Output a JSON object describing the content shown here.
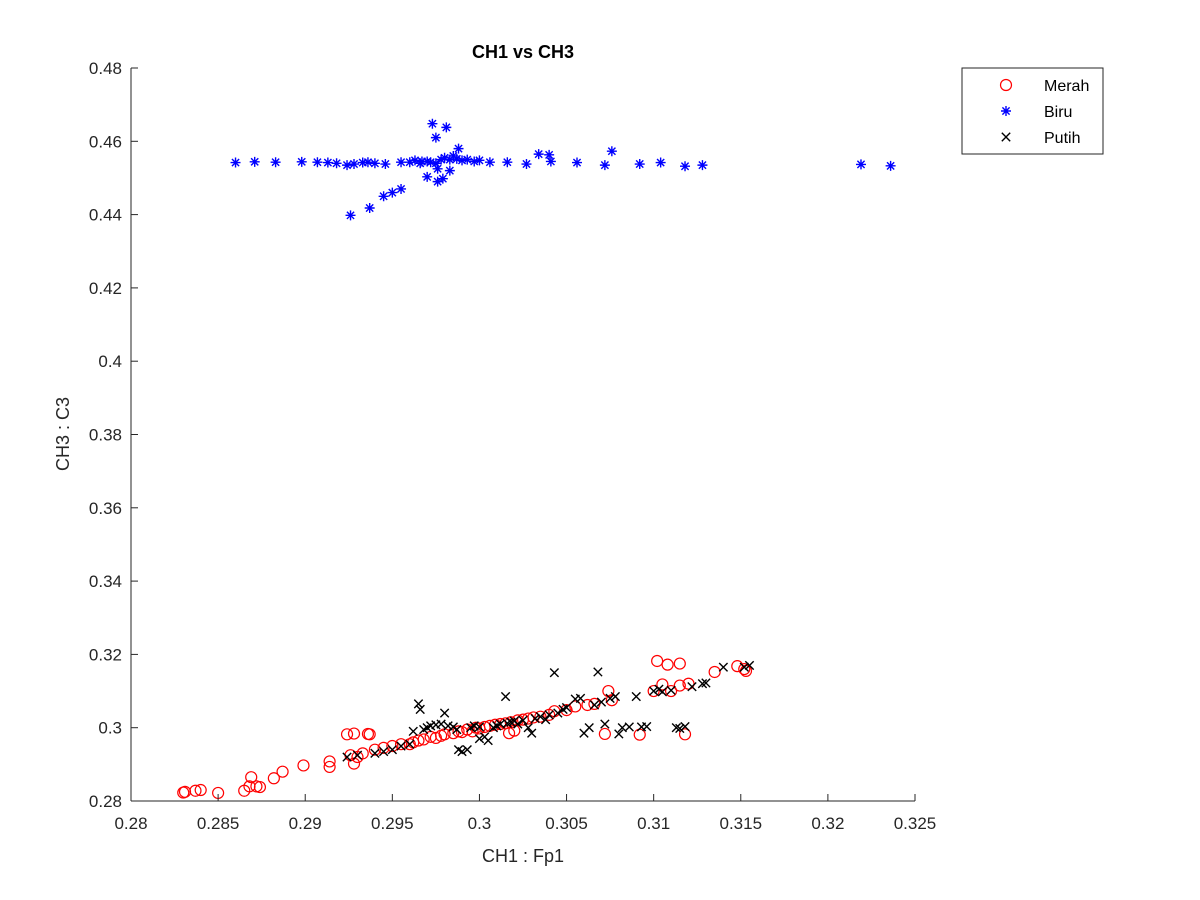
{
  "chart_data": {
    "type": "scatter",
    "title": "CH1 vs CH3",
    "xlabel": "CH1 : Fp1",
    "ylabel": "CH3 : C3",
    "xlim": [
      0.28,
      0.325
    ],
    "ylim": [
      0.28,
      0.48
    ],
    "xticks": [
      0.28,
      0.285,
      0.29,
      0.295,
      0.3,
      0.305,
      0.31,
      0.315,
      0.32,
      0.325
    ],
    "xtick_labels": [
      "0.28",
      "0.285",
      "0.29",
      "0.295",
      "0.3",
      "0.305",
      "0.31",
      "0.315",
      "0.32",
      "0.325"
    ],
    "yticks": [
      0.28,
      0.3,
      0.32,
      0.34,
      0.36,
      0.38,
      0.4,
      0.42,
      0.44,
      0.46,
      0.48
    ],
    "ytick_labels": [
      "0.28",
      "0.3",
      "0.32",
      "0.34",
      "0.36",
      "0.38",
      "0.4",
      "0.42",
      "0.44",
      "0.46",
      "0.48"
    ],
    "grid": false,
    "legend_position": "outside-top-right",
    "series": [
      {
        "name": "Merah",
        "marker": "circle",
        "color": "#ff0000",
        "points": [
          [
            0.283,
            0.2823
          ],
          [
            0.2831,
            0.2825
          ],
          [
            0.2837,
            0.2828
          ],
          [
            0.284,
            0.283
          ],
          [
            0.285,
            0.2822
          ],
          [
            0.2865,
            0.2828
          ],
          [
            0.2868,
            0.284
          ],
          [
            0.2869,
            0.2865
          ],
          [
            0.2872,
            0.284
          ],
          [
            0.2874,
            0.2838
          ],
          [
            0.2882,
            0.2862
          ],
          [
            0.2887,
            0.288
          ],
          [
            0.2899,
            0.2897
          ],
          [
            0.2914,
            0.2893
          ],
          [
            0.2914,
            0.2908
          ],
          [
            0.2924,
            0.2982
          ],
          [
            0.2926,
            0.2925
          ],
          [
            0.2928,
            0.2984
          ],
          [
            0.2928,
            0.2902
          ],
          [
            0.293,
            0.292
          ],
          [
            0.2933,
            0.293
          ],
          [
            0.2936,
            0.2983
          ],
          [
            0.2937,
            0.2982
          ],
          [
            0.294,
            0.294
          ],
          [
            0.2945,
            0.2945
          ],
          [
            0.295,
            0.295
          ],
          [
            0.2955,
            0.2955
          ],
          [
            0.296,
            0.2955
          ],
          [
            0.2962,
            0.296
          ],
          [
            0.2965,
            0.2965
          ],
          [
            0.2968,
            0.2968
          ],
          [
            0.2972,
            0.2975
          ],
          [
            0.2975,
            0.2972
          ],
          [
            0.2978,
            0.2978
          ],
          [
            0.298,
            0.2982
          ],
          [
            0.2985,
            0.2985
          ],
          [
            0.2988,
            0.299
          ],
          [
            0.299,
            0.2988
          ],
          [
            0.2993,
            0.2995
          ],
          [
            0.2996,
            0.299
          ],
          [
            0.2998,
            0.3
          ],
          [
            0.3,
            0.2998
          ],
          [
            0.3003,
            0.3002
          ],
          [
            0.3006,
            0.3005
          ],
          [
            0.3009,
            0.3008
          ],
          [
            0.3012,
            0.301
          ],
          [
            0.3015,
            0.3012
          ],
          [
            0.3018,
            0.3015
          ],
          [
            0.3017,
            0.2985
          ],
          [
            0.302,
            0.2992
          ],
          [
            0.3022,
            0.302
          ],
          [
            0.3025,
            0.3022
          ],
          [
            0.3028,
            0.3025
          ],
          [
            0.3031,
            0.3028
          ],
          [
            0.3035,
            0.303
          ],
          [
            0.304,
            0.3035
          ],
          [
            0.3043,
            0.3045
          ],
          [
            0.305,
            0.3048
          ],
          [
            0.3055,
            0.3058
          ],
          [
            0.3062,
            0.3062
          ],
          [
            0.3066,
            0.3065
          ],
          [
            0.3072,
            0.2983
          ],
          [
            0.3074,
            0.31
          ],
          [
            0.3076,
            0.3075
          ],
          [
            0.3092,
            0.2981
          ],
          [
            0.31,
            0.31
          ],
          [
            0.3102,
            0.3182
          ],
          [
            0.3105,
            0.3118
          ],
          [
            0.3108,
            0.3172
          ],
          [
            0.311,
            0.31
          ],
          [
            0.3115,
            0.3175
          ],
          [
            0.3115,
            0.3115
          ],
          [
            0.3118,
            0.2982
          ],
          [
            0.312,
            0.312
          ],
          [
            0.3135,
            0.3152
          ],
          [
            0.3148,
            0.3168
          ],
          [
            0.3152,
            0.316
          ],
          [
            0.3153,
            0.3155
          ]
        ]
      },
      {
        "name": "Biru",
        "marker": "asterisk",
        "color": "#0000ff",
        "points": [
          [
            0.286,
            0.4542
          ],
          [
            0.2871,
            0.4544
          ],
          [
            0.2883,
            0.4543
          ],
          [
            0.2898,
            0.4544
          ],
          [
            0.2907,
            0.4543
          ],
          [
            0.2913,
            0.4542
          ],
          [
            0.2918,
            0.454
          ],
          [
            0.2924,
            0.4535
          ],
          [
            0.2928,
            0.4538
          ],
          [
            0.2933,
            0.4542
          ],
          [
            0.2936,
            0.4543
          ],
          [
            0.294,
            0.454
          ],
          [
            0.2946,
            0.4538
          ],
          [
            0.2955,
            0.4543
          ],
          [
            0.296,
            0.4543
          ],
          [
            0.2966,
            0.454
          ],
          [
            0.297,
            0.4545
          ],
          [
            0.2972,
            0.4543
          ],
          [
            0.2975,
            0.454
          ],
          [
            0.2978,
            0.455
          ],
          [
            0.298,
            0.4555
          ],
          [
            0.2983,
            0.455
          ],
          [
            0.2985,
            0.456
          ],
          [
            0.2987,
            0.4552
          ],
          [
            0.299,
            0.4548
          ],
          [
            0.2993,
            0.455
          ],
          [
            0.2997,
            0.4545
          ],
          [
            0.3,
            0.4548
          ],
          [
            0.3006,
            0.4543
          ],
          [
            0.3016,
            0.4543
          ],
          [
            0.3027,
            0.4538
          ],
          [
            0.3034,
            0.4565
          ],
          [
            0.304,
            0.4563
          ],
          [
            0.3041,
            0.4545
          ],
          [
            0.3056,
            0.4542
          ],
          [
            0.3072,
            0.4535
          ],
          [
            0.3076,
            0.4573
          ],
          [
            0.3092,
            0.4538
          ],
          [
            0.3104,
            0.4542
          ],
          [
            0.3118,
            0.4532
          ],
          [
            0.3128,
            0.4535
          ],
          [
            0.3219,
            0.4537
          ],
          [
            0.3236,
            0.4533
          ],
          [
            0.2926,
            0.4398
          ],
          [
            0.2937,
            0.4418
          ],
          [
            0.2945,
            0.445
          ],
          [
            0.295,
            0.446
          ],
          [
            0.2955,
            0.447
          ],
          [
            0.2973,
            0.4648
          ],
          [
            0.2975,
            0.461
          ],
          [
            0.2981,
            0.4638
          ],
          [
            0.297,
            0.4503
          ],
          [
            0.2976,
            0.449
          ],
          [
            0.2979,
            0.4498
          ],
          [
            0.2983,
            0.452
          ],
          [
            0.2976,
            0.4525
          ],
          [
            0.2988,
            0.458
          ],
          [
            0.2963,
            0.4548
          ],
          [
            0.2967,
            0.4545
          ]
        ]
      },
      {
        "name": "Putih",
        "marker": "x",
        "color": "#000000",
        "points": [
          [
            0.2924,
            0.292
          ],
          [
            0.293,
            0.2925
          ],
          [
            0.294,
            0.293
          ],
          [
            0.2945,
            0.2935
          ],
          [
            0.295,
            0.294
          ],
          [
            0.2955,
            0.295
          ],
          [
            0.296,
            0.2955
          ],
          [
            0.2962,
            0.299
          ],
          [
            0.2965,
            0.3065
          ],
          [
            0.2966,
            0.305
          ],
          [
            0.2968,
            0.2995
          ],
          [
            0.297,
            0.3
          ],
          [
            0.2972,
            0.3005
          ],
          [
            0.2975,
            0.3008
          ],
          [
            0.2978,
            0.301
          ],
          [
            0.298,
            0.304
          ],
          [
            0.2982,
            0.3005
          ],
          [
            0.2985,
            0.3002
          ],
          [
            0.2987,
            0.2995
          ],
          [
            0.2988,
            0.294
          ],
          [
            0.299,
            0.2935
          ],
          [
            0.2993,
            0.294
          ],
          [
            0.2995,
            0.3
          ],
          [
            0.2997,
            0.3005
          ],
          [
            0.3,
            0.3002
          ],
          [
            0.3,
            0.297
          ],
          [
            0.3003,
            0.2975
          ],
          [
            0.3005,
            0.2965
          ],
          [
            0.3008,
            0.3
          ],
          [
            0.301,
            0.3005
          ],
          [
            0.3012,
            0.301
          ],
          [
            0.3015,
            0.3085
          ],
          [
            0.3016,
            0.3012
          ],
          [
            0.3018,
            0.3015
          ],
          [
            0.302,
            0.3018
          ],
          [
            0.3022,
            0.301
          ],
          [
            0.3025,
            0.302
          ],
          [
            0.3028,
            0.3
          ],
          [
            0.303,
            0.2985
          ],
          [
            0.3032,
            0.3025
          ],
          [
            0.3035,
            0.303
          ],
          [
            0.3038,
            0.3022
          ],
          [
            0.304,
            0.3035
          ],
          [
            0.3043,
            0.315
          ],
          [
            0.3045,
            0.304
          ],
          [
            0.3048,
            0.305
          ],
          [
            0.305,
            0.3055
          ],
          [
            0.3055,
            0.3078
          ],
          [
            0.3058,
            0.308
          ],
          [
            0.306,
            0.2985
          ],
          [
            0.3063,
            0.3
          ],
          [
            0.3066,
            0.3062
          ],
          [
            0.3068,
            0.3152
          ],
          [
            0.307,
            0.307
          ],
          [
            0.3072,
            0.301
          ],
          [
            0.3075,
            0.308
          ],
          [
            0.3078,
            0.3085
          ],
          [
            0.308,
            0.2983
          ],
          [
            0.3082,
            0.3
          ],
          [
            0.3086,
            0.3002
          ],
          [
            0.309,
            0.3085
          ],
          [
            0.3093,
            0.3002
          ],
          [
            0.3096,
            0.3003
          ],
          [
            0.31,
            0.31
          ],
          [
            0.3103,
            0.3105
          ],
          [
            0.3105,
            0.3098
          ],
          [
            0.311,
            0.3102
          ],
          [
            0.3113,
            0.3
          ],
          [
            0.3115,
            0.2998
          ],
          [
            0.3118,
            0.3003
          ],
          [
            0.3122,
            0.3112
          ],
          [
            0.3128,
            0.312
          ],
          [
            0.313,
            0.3122
          ],
          [
            0.314,
            0.3165
          ],
          [
            0.3152,
            0.3165
          ],
          [
            0.3155,
            0.317
          ]
        ]
      }
    ]
  }
}
